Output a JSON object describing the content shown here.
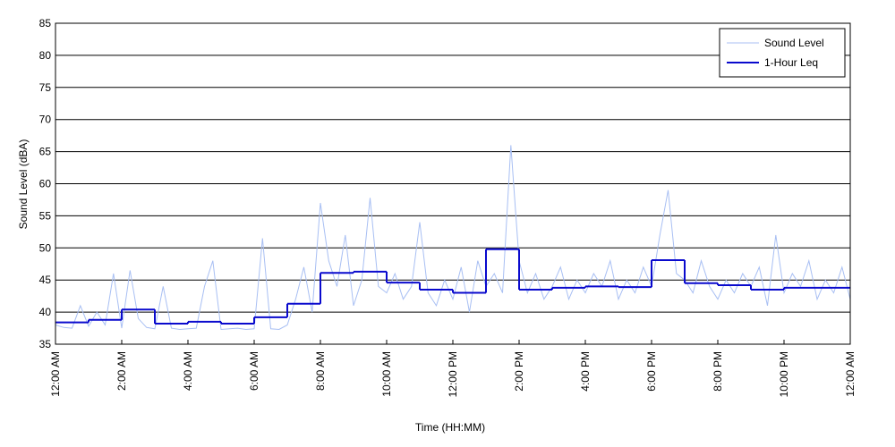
{
  "chart_data": {
    "type": "line",
    "xlabel": "Time (HH:MM)",
    "ylabel": "Sound Level (dBA)",
    "xlim": [
      0,
      24
    ],
    "ylim": [
      35,
      85
    ],
    "yticks": [
      35,
      40,
      45,
      50,
      55,
      60,
      65,
      70,
      75,
      80,
      85
    ],
    "xticks": [
      {
        "value": 0,
        "label": "12:00 AM"
      },
      {
        "value": 2,
        "label": "2:00 AM"
      },
      {
        "value": 4,
        "label": "4:00 AM"
      },
      {
        "value": 6,
        "label": "6:00 AM"
      },
      {
        "value": 8,
        "label": "8:00 AM"
      },
      {
        "value": 10,
        "label": "10:00 AM"
      },
      {
        "value": 12,
        "label": "12:00 PM"
      },
      {
        "value": 14,
        "label": "2:00 PM"
      },
      {
        "value": 16,
        "label": "4:00 PM"
      },
      {
        "value": 18,
        "label": "6:00 PM"
      },
      {
        "value": 20,
        "label": "8:00 PM"
      },
      {
        "value": 22,
        "label": "10:00 PM"
      },
      {
        "value": 24,
        "label": "12:00 AM"
      }
    ],
    "grid": true,
    "legend": "top-right",
    "series": [
      {
        "name": "Sound Level",
        "color": "#a8bff3",
        "step": false,
        "x": [
          0,
          0.25,
          0.5,
          0.75,
          1,
          1.25,
          1.5,
          1.75,
          2,
          2.25,
          2.5,
          2.75,
          3,
          3.25,
          3.5,
          3.75,
          4,
          4.25,
          4.5,
          4.75,
          5,
          5.25,
          5.5,
          5.75,
          6,
          6.25,
          6.5,
          6.75,
          7,
          7.25,
          7.5,
          7.75,
          8,
          8.25,
          8.5,
          8.75,
          9,
          9.25,
          9.5,
          9.75,
          10,
          10.25,
          10.5,
          10.75,
          11,
          11.25,
          11.5,
          11.75,
          12,
          12.25,
          12.5,
          12.75,
          13,
          13.25,
          13.5,
          13.75,
          14,
          14.25,
          14.5,
          14.75,
          15,
          15.25,
          15.5,
          15.75,
          16,
          16.25,
          16.5,
          16.75,
          17,
          17.25,
          17.5,
          17.75,
          18,
          18.25,
          18.5,
          18.75,
          19,
          19.25,
          19.5,
          19.75,
          20,
          20.25,
          20.5,
          20.75,
          21,
          21.25,
          21.5,
          21.75,
          22,
          22.25,
          22.5,
          22.75,
          23,
          23.25,
          23.5,
          23.75,
          24
        ],
        "values": [
          38,
          37.6,
          37.5,
          41,
          37.8,
          40,
          38,
          46,
          37.5,
          46.5,
          39,
          37.6,
          37.4,
          44,
          37.5,
          37.3,
          37.4,
          37.5,
          44,
          48,
          37.3,
          37.4,
          37.5,
          37.3,
          37.4,
          51.5,
          37.4,
          37.3,
          38,
          42,
          47,
          40,
          57,
          48,
          44,
          52,
          41,
          45,
          57.8,
          44,
          43,
          46,
          42,
          44,
          54,
          43,
          41,
          45,
          42,
          47,
          40,
          48,
          44,
          46,
          43,
          66,
          48,
          43,
          46,
          42,
          44,
          47,
          42,
          45,
          43,
          46,
          44,
          48,
          42,
          45,
          43,
          47,
          44,
          52,
          59,
          46,
          45,
          43,
          48,
          44,
          42,
          45,
          43,
          46,
          44,
          47,
          41,
          52,
          43,
          46,
          44,
          48,
          42,
          45,
          43,
          47,
          42
        ]
      },
      {
        "name": "1-Hour Leq",
        "color": "#0a0acd",
        "step": true,
        "x": [
          0,
          1,
          2,
          3,
          4,
          5,
          6,
          7,
          8,
          9,
          10,
          11,
          12,
          13,
          14,
          15,
          16,
          17,
          18,
          19,
          20,
          21,
          22,
          23
        ],
        "values": [
          38.4,
          38.8,
          40.4,
          38.2,
          38.5,
          38.2,
          39.2,
          41.3,
          46.1,
          46.3,
          44.6,
          43.5,
          43.0,
          49.8,
          43.5,
          43.8,
          44.0,
          43.9,
          48.1,
          44.5,
          44.2,
          43.5,
          43.8,
          43.8
        ]
      }
    ]
  }
}
